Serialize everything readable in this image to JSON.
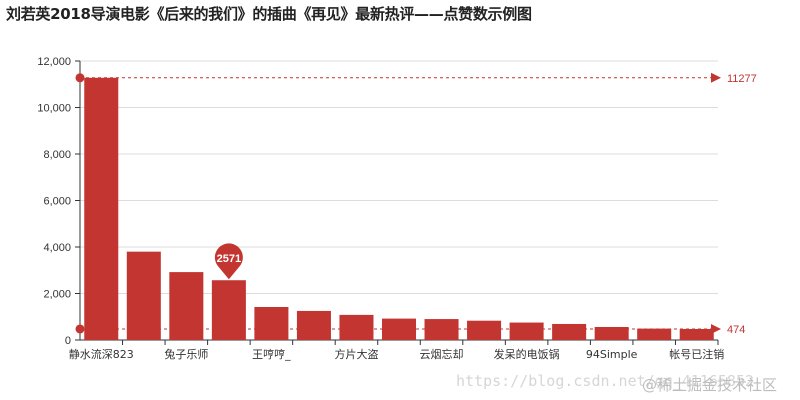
{
  "chart_data": {
    "type": "bar",
    "title": "刘若英2018导演电影《后来的我们》的插曲《再见》最新热评——点赞数示例图",
    "categories": [
      "静水流深823",
      "",
      "兔子乐师",
      "",
      "王哼哼_",
      "",
      "方片大盗",
      "",
      "云烟忘却",
      "",
      "发呆的电饭锅",
      "",
      "94Simple",
      "",
      "帐号已注销"
    ],
    "values": [
      11277,
      3800,
      2920,
      2571,
      1420,
      1250,
      1080,
      920,
      900,
      830,
      750,
      690,
      560,
      490,
      474
    ],
    "ylim": [
      0,
      12000
    ],
    "yticks": [
      0,
      2000,
      4000,
      6000,
      8000,
      10000,
      12000
    ],
    "ytick_labels": [
      "0",
      "2,000",
      "4,000",
      "6,000",
      "8,000",
      "10,000",
      "12,000"
    ],
    "grid": true,
    "bar_color": "#c23531",
    "mark_line": {
      "max": 11277,
      "min": 474,
      "max_label": "11277",
      "min_label": "474"
    },
    "mark_point": {
      "category_index": 3,
      "value": 2571,
      "label": "2571"
    }
  },
  "watermark": {
    "url_text": "https://blog.csdn.net/qq_41165852",
    "community_text": "@稀土掘金技术社区"
  }
}
